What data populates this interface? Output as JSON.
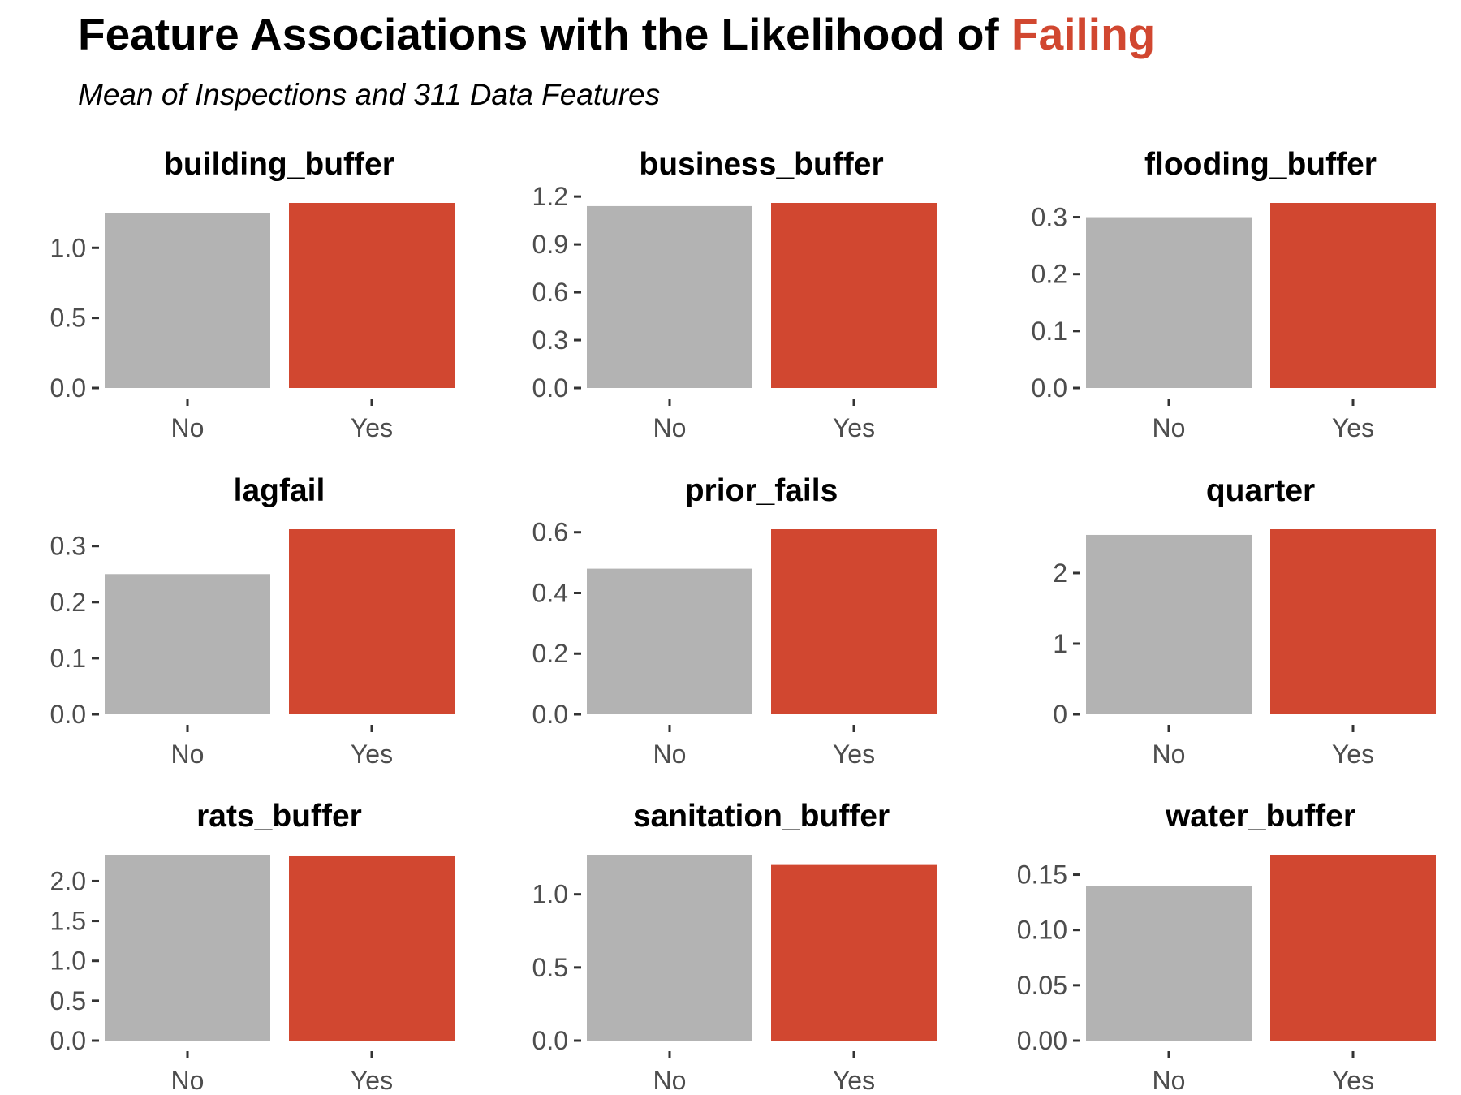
{
  "title": {
    "main": "Feature Associations with the Likelihood of ",
    "highlight": "Failing"
  },
  "subtitle": "Mean of Inspections and 311 Data Features",
  "colors": {
    "no": "#b3b3b3",
    "yes": "#d14730",
    "highlight": "#d14730",
    "tick_text": "#4d4d4d",
    "tick_mark": "#333333"
  },
  "chart_data": [
    {
      "type": "bar",
      "title": "building_buffer",
      "categories": [
        "No",
        "Yes"
      ],
      "values": [
        1.25,
        1.32
      ],
      "ylim": [
        0,
        1.32
      ],
      "yticks": [
        "0.0",
        "0.5",
        "1.0"
      ]
    },
    {
      "type": "bar",
      "title": "business_buffer",
      "categories": [
        "No",
        "Yes"
      ],
      "values": [
        1.14,
        1.16
      ],
      "ylim": [
        0,
        1.16
      ],
      "yticks": [
        "0.0",
        "0.3",
        "0.6",
        "0.9",
        "1.2"
      ]
    },
    {
      "type": "bar",
      "title": "flooding_buffer",
      "categories": [
        "No",
        "Yes"
      ],
      "values": [
        0.3,
        0.325
      ],
      "ylim": [
        0,
        0.325
      ],
      "yticks": [
        "0.0",
        "0.1",
        "0.2",
        "0.3"
      ]
    },
    {
      "type": "bar",
      "title": "lagfail",
      "categories": [
        "No",
        "Yes"
      ],
      "values": [
        0.25,
        0.33
      ],
      "ylim": [
        0,
        0.33
      ],
      "yticks": [
        "0.0",
        "0.1",
        "0.2",
        "0.3"
      ]
    },
    {
      "type": "bar",
      "title": "prior_fails",
      "categories": [
        "No",
        "Yes"
      ],
      "values": [
        0.48,
        0.61
      ],
      "ylim": [
        0,
        0.61
      ],
      "yticks": [
        "0.0",
        "0.2",
        "0.4",
        "0.6"
      ]
    },
    {
      "type": "bar",
      "title": "quarter",
      "categories": [
        "No",
        "Yes"
      ],
      "values": [
        2.54,
        2.62
      ],
      "ylim": [
        0,
        2.62
      ],
      "yticks": [
        "0",
        "1",
        "2"
      ]
    },
    {
      "type": "bar",
      "title": "rats_buffer",
      "categories": [
        "No",
        "Yes"
      ],
      "values": [
        2.33,
        2.32
      ],
      "ylim": [
        0,
        2.33
      ],
      "yticks": [
        "0.0",
        "0.5",
        "1.0",
        "1.5",
        "2.0"
      ]
    },
    {
      "type": "bar",
      "title": "sanitation_buffer",
      "categories": [
        "No",
        "Yes"
      ],
      "values": [
        1.27,
        1.2
      ],
      "ylim": [
        0,
        1.27
      ],
      "yticks": [
        "0.0",
        "0.5",
        "1.0"
      ]
    },
    {
      "type": "bar",
      "title": "water_buffer",
      "categories": [
        "No",
        "Yes"
      ],
      "values": [
        0.14,
        0.168
      ],
      "ylim": [
        0,
        0.168
      ],
      "yticks": [
        "0.00",
        "0.05",
        "0.10",
        "0.15"
      ]
    }
  ]
}
